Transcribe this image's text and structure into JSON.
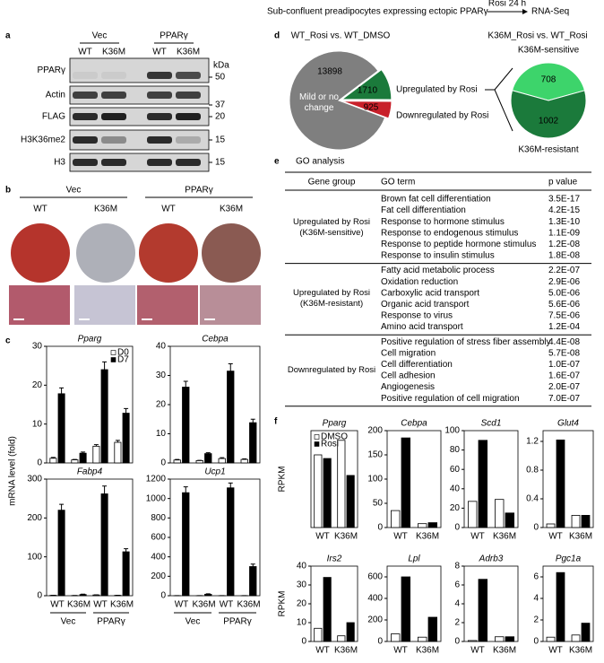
{
  "panel_labels": [
    "a",
    "b",
    "c",
    "d",
    "e",
    "f"
  ],
  "header": {
    "text": "Sub-confluent preadipocytes expressing ectopic PPARγ",
    "arrow_label": "Rosi 24 h",
    "result": "RNA-Seq"
  },
  "blot": {
    "groups": [
      "Vec",
      "PPARγ"
    ],
    "lanes": [
      "WT",
      "K36M",
      "WT",
      "K36M"
    ],
    "rows": [
      "PPARγ",
      "Actin",
      "FLAG",
      "H3K36me2",
      "H3"
    ],
    "unit": "kDa",
    "markers": [
      50,
      37,
      20,
      15,
      15
    ]
  },
  "staining": {
    "groups": [
      "Vec",
      "PPARγ"
    ],
    "lanes": [
      "WT",
      "K36M",
      "WT",
      "K36M"
    ]
  },
  "panel_c": {
    "y_label": "mRNA level (fold)"
  },
  "go": {
    "title": "GO analysis",
    "headers": [
      "Gene group",
      "GO term",
      "p value"
    ],
    "groups": [
      {
        "name": "Upregulated by Rosi (K36M-sensitive)",
        "terms": [
          [
            "Brown fat cell differentiation",
            "3.5E-17"
          ],
          [
            "Fat cell differentiation",
            "4.2E-15"
          ],
          [
            "Response to hormone stimulus",
            "1.3E-10"
          ],
          [
            "Response to endogenous stimulus",
            "1.1E-09"
          ],
          [
            "Response to peptide hormone stimulus",
            "1.2E-08"
          ],
          [
            "Response to insulin stimulus",
            "1.8E-08"
          ]
        ]
      },
      {
        "name": "Upregulated by Rosi (K36M-resistant)",
        "terms": [
          [
            "Fatty acid metabolic process",
            "2.2E-07"
          ],
          [
            "Oxidation reduction",
            "2.9E-06"
          ],
          [
            "Carboxylic acid transport",
            "5.0E-06"
          ],
          [
            "Organic acid transport",
            "5.6E-06"
          ],
          [
            "Response to virus",
            "7.5E-06"
          ],
          [
            "Amino acid transport",
            "1.2E-04"
          ]
        ]
      },
      {
        "name": "Downregulated by Rosi",
        "terms": [
          [
            "Positive regulation of stress fiber assembly",
            "4.4E-08"
          ],
          [
            "Cell migration",
            "5.7E-08"
          ],
          [
            "Cell differentiation",
            "1.0E-07"
          ],
          [
            "Cell adhesion",
            "1.6E-07"
          ],
          [
            "Angiogenesis",
            "2.0E-07"
          ],
          [
            "Positive regulation of cell migration",
            "7.0E-07"
          ]
        ]
      }
    ]
  },
  "chart_data": [
    {
      "type": "pie",
      "title": "WT_Rosi vs. WT_DMSO",
      "values": [
        1710,
        925,
        13898
      ],
      "labels": [
        "Upregulated by Rosi",
        "Downregulated by Rosi",
        "Mild or no change"
      ],
      "colors": [
        "#1b7a3b",
        "#c8202a",
        "#7f7f7f"
      ]
    },
    {
      "type": "pie",
      "title": "K36M_Rosi vs. WT_Rosi",
      "values": [
        708,
        1002
      ],
      "labels": [
        "K36M-sensitive",
        "K36M-resistant"
      ],
      "colors": [
        "#3dd46b",
        "#1b7a3b"
      ]
    },
    {
      "type": "bar",
      "title": "Pparg",
      "ylim": [
        0,
        30
      ],
      "yticks": [
        0,
        10,
        20,
        30
      ],
      "legend": "upper right",
      "categories": [
        null,
        null,
        null,
        null
      ],
      "series": [
        {
          "name": "D0",
          "color": "#ffffff",
          "values": [
            1.2,
            0.8,
            4.3,
            5.3
          ],
          "errors": [
            0.2,
            0.1,
            0.4,
            0.5
          ]
        },
        {
          "name": "D7",
          "color": "#000000",
          "values": [
            17.8,
            2.5,
            24,
            12.8
          ],
          "errors": [
            1.5,
            0.3,
            2,
            1.2
          ]
        }
      ]
    },
    {
      "type": "bar",
      "title": "Cebpa",
      "ylim": [
        0,
        40
      ],
      "yticks": [
        0,
        10,
        20,
        30,
        40
      ],
      "categories": [
        null,
        null,
        null,
        null
      ],
      "series": [
        {
          "color": "#ffffff",
          "values": [
            1,
            0.8,
            1.5,
            1.2
          ],
          "errors": [
            0.2,
            0.1,
            0.3,
            0.2
          ]
        },
        {
          "color": "#000000",
          "values": [
            26,
            3.2,
            31.5,
            13.8
          ],
          "errors": [
            2,
            0.3,
            2.5,
            1.2
          ]
        }
      ]
    },
    {
      "type": "bar",
      "title": "Fabp4",
      "ylim": [
        0,
        300
      ],
      "yticks": [
        0,
        100,
        200,
        300
      ],
      "categories": [
        "WT",
        "K36M",
        "WT",
        "K36M"
      ],
      "group_labels": [
        "Vec",
        "PPARγ"
      ],
      "series": [
        {
          "color": "#ffffff",
          "values": [
            1,
            0.5,
            2,
            1
          ],
          "errors": [
            0.2,
            0.1,
            0.3,
            0.2
          ]
        },
        {
          "color": "#000000",
          "values": [
            220,
            3,
            262,
            113
          ],
          "errors": [
            15,
            1,
            20,
            8
          ]
        }
      ]
    },
    {
      "type": "bar",
      "title": "Ucp1",
      "ylim": [
        0,
        1200
      ],
      "yticks": [
        0,
        200,
        400,
        600,
        800,
        1000,
        1200
      ],
      "categories": [
        "WT",
        "K36M",
        "WT",
        "K36M"
      ],
      "group_labels": [
        "Vec",
        "PPARγ"
      ],
      "series": [
        {
          "color": "#ffffff",
          "values": [
            1,
            1,
            1,
            1
          ],
          "errors": [
            0.2,
            0.2,
            0.2,
            0.2
          ]
        },
        {
          "color": "#000000",
          "values": [
            1060,
            15,
            1110,
            300
          ],
          "errors": [
            60,
            5,
            50,
            25
          ]
        }
      ]
    },
    {
      "type": "bar",
      "title": "Pparg",
      "y_label": "RPKM",
      "ylim": [
        0,
        80
      ],
      "legend": "upper left",
      "categories": [
        "WT",
        "K36M"
      ],
      "series": [
        {
          "name": "DMSO",
          "color": "#ffffff",
          "values": [
            60,
            72
          ]
        },
        {
          "name": "Rosi",
          "color": "#000000",
          "values": [
            57,
            43
          ]
        }
      ]
    },
    {
      "type": "bar",
      "title": "Cebpa",
      "ylim": [
        0,
        200
      ],
      "yticks": [
        0,
        50,
        100,
        150,
        200
      ],
      "categories": [
        "WT",
        "K36M"
      ],
      "series": [
        {
          "color": "#ffffff",
          "values": [
            35,
            8
          ]
        },
        {
          "color": "#000000",
          "values": [
            185,
            10
          ]
        }
      ]
    },
    {
      "type": "bar",
      "title": "Scd1",
      "ylim": [
        0,
        100
      ],
      "yticks": [
        0,
        20,
        40,
        60,
        80,
        100
      ],
      "categories": [
        "WT",
        "K36M"
      ],
      "series": [
        {
          "color": "#ffffff",
          "values": [
            27,
            29
          ]
        },
        {
          "color": "#000000",
          "values": [
            90,
            15
          ]
        }
      ]
    },
    {
      "type": "bar",
      "title": "Glut4",
      "ylim": [
        0,
        1.35
      ],
      "yticks": [
        0,
        0.4,
        0.8,
        1.2
      ],
      "categories": [
        "WT",
        "K36M"
      ],
      "series": [
        {
          "color": "#ffffff",
          "values": [
            0.05,
            0.17
          ]
        },
        {
          "color": "#000000",
          "values": [
            1.22,
            0.17
          ]
        }
      ]
    },
    {
      "type": "bar",
      "title": "Irs2",
      "y_label": "RPKM",
      "ylim": [
        0,
        40
      ],
      "yticks": [
        0,
        10,
        20,
        30,
        40
      ],
      "categories": [
        "WT",
        "K36M"
      ],
      "series": [
        {
          "color": "#ffffff",
          "values": [
            7,
            3
          ]
        },
        {
          "color": "#000000",
          "values": [
            34,
            10
          ]
        }
      ]
    },
    {
      "type": "bar",
      "title": "Lpl",
      "ylim": [
        0,
        700
      ],
      "yticks": [
        0,
        200,
        400,
        600
      ],
      "categories": [
        "WT",
        "K36M"
      ],
      "series": [
        {
          "color": "#ffffff",
          "values": [
            70,
            40
          ]
        },
        {
          "color": "#000000",
          "values": [
            600,
            225
          ]
        }
      ]
    },
    {
      "type": "bar",
      "title": "Adrb3",
      "ylim": [
        0,
        8
      ],
      "yticks": [
        0,
        2,
        4,
        6,
        8
      ],
      "categories": [
        "WT",
        "K36M"
      ],
      "series": [
        {
          "color": "#ffffff",
          "values": [
            0.1,
            0.5
          ]
        },
        {
          "color": "#000000",
          "values": [
            6.6,
            0.5
          ]
        }
      ]
    },
    {
      "type": "bar",
      "title": "Pgc1a",
      "ylim": [
        0,
        7
      ],
      "yticks": [
        0,
        2,
        4,
        6
      ],
      "categories": [
        "WT",
        "K36M"
      ],
      "series": [
        {
          "color": "#ffffff",
          "values": [
            0.4,
            0.6
          ]
        },
        {
          "color": "#000000",
          "values": [
            6.4,
            1.7
          ]
        }
      ]
    }
  ]
}
